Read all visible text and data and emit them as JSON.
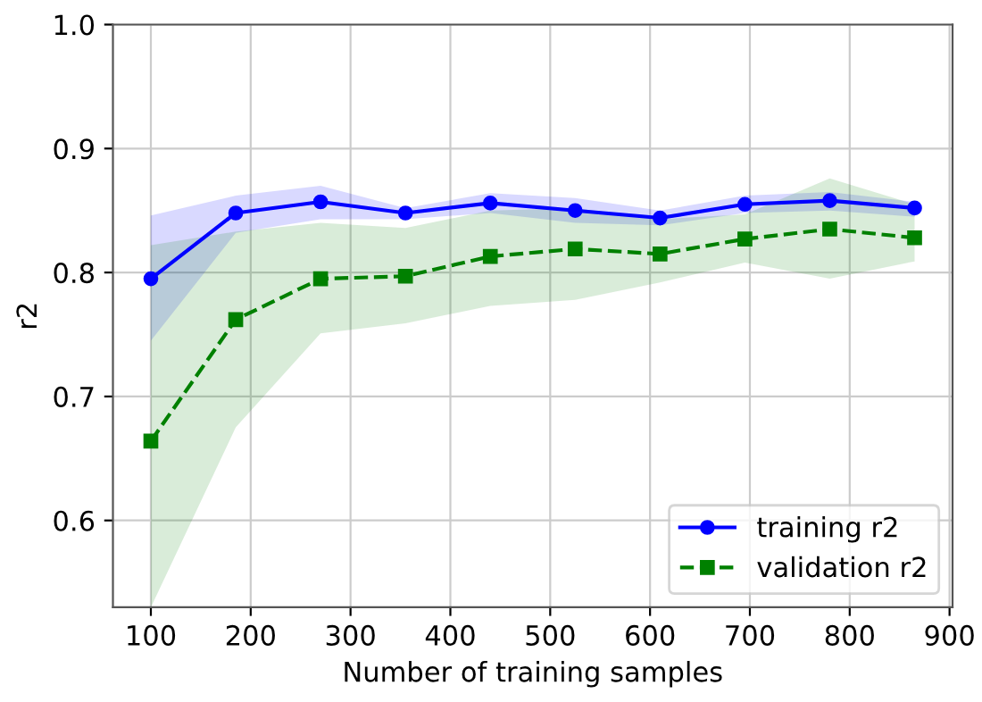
{
  "chart_data": {
    "type": "line",
    "xlabel": "Number of training samples",
    "ylabel": "r2",
    "x": [
      100,
      185,
      270,
      355,
      440,
      525,
      610,
      695,
      780,
      865
    ],
    "series": [
      {
        "name": "training r2",
        "color": "#0000ff",
        "marker": "circle",
        "line_style": "solid",
        "values": [
          0.795,
          0.848,
          0.857,
          0.848,
          0.856,
          0.85,
          0.844,
          0.855,
          0.858,
          0.852
        ],
        "lower": [
          0.745,
          0.832,
          0.843,
          0.843,
          0.848,
          0.84,
          0.838,
          0.848,
          0.85,
          0.845
        ],
        "upper": [
          0.846,
          0.862,
          0.87,
          0.852,
          0.864,
          0.86,
          0.85,
          0.862,
          0.865,
          0.857
        ]
      },
      {
        "name": "validation r2",
        "color": "#008000",
        "marker": "square",
        "line_style": "dashed",
        "values": [
          0.664,
          0.762,
          0.795,
          0.797,
          0.813,
          0.819,
          0.815,
          0.827,
          0.835,
          0.828
        ],
        "lower": [
          0.53,
          0.675,
          0.751,
          0.759,
          0.773,
          0.778,
          0.792,
          0.808,
          0.795,
          0.809
        ],
        "upper": [
          0.822,
          0.833,
          0.84,
          0.836,
          0.85,
          0.852,
          0.843,
          0.847,
          0.876,
          0.855
        ]
      }
    ],
    "xlim": [
      62,
      903
    ],
    "ylim": [
      0.53,
      1.0
    ],
    "xticks": [
      100,
      200,
      300,
      400,
      500,
      600,
      700,
      800,
      900
    ],
    "yticks": [
      {
        "value": 0.6,
        "label": "0.6"
      },
      {
        "value": 0.7,
        "label": "0.7"
      },
      {
        "value": 0.8,
        "label": "0.8"
      },
      {
        "value": 0.9,
        "label": "0.9"
      },
      {
        "value": 1.0,
        "label": "1.0"
      }
    ],
    "grid": true,
    "legend": "bottom right"
  }
}
